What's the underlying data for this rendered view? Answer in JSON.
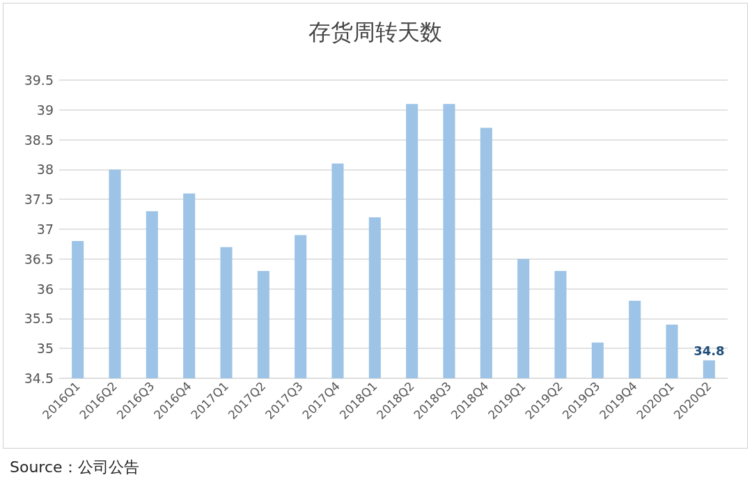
{
  "chart_data": {
    "type": "bar",
    "title": "存货周转天数",
    "categories": [
      "2016Q1",
      "2016Q2",
      "2016Q3",
      "2016Q4",
      "2017Q1",
      "2017Q2",
      "2017Q3",
      "2017Q4",
      "2018Q1",
      "2018Q2",
      "2018Q3",
      "2018Q4",
      "2019Q1",
      "2019Q2",
      "2019Q3",
      "2019Q4",
      "2020Q1",
      "2020Q2"
    ],
    "values": [
      36.8,
      38.0,
      37.3,
      37.6,
      36.7,
      36.3,
      36.9,
      38.1,
      37.2,
      39.1,
      39.1,
      38.7,
      36.5,
      36.3,
      35.1,
      35.8,
      35.4,
      34.8
    ],
    "value_labels": [
      null,
      null,
      null,
      null,
      null,
      null,
      null,
      null,
      null,
      null,
      null,
      null,
      null,
      null,
      null,
      null,
      null,
      "34.8"
    ],
    "color": "#9dc3e6",
    "ylim": [
      34.5,
      39.5
    ],
    "yticks": [
      34.5,
      35,
      35.5,
      36,
      36.5,
      37,
      37.5,
      38,
      38.5,
      39,
      39.5
    ],
    "grid": "y",
    "annotations": [
      "Source：公司公告"
    ]
  }
}
